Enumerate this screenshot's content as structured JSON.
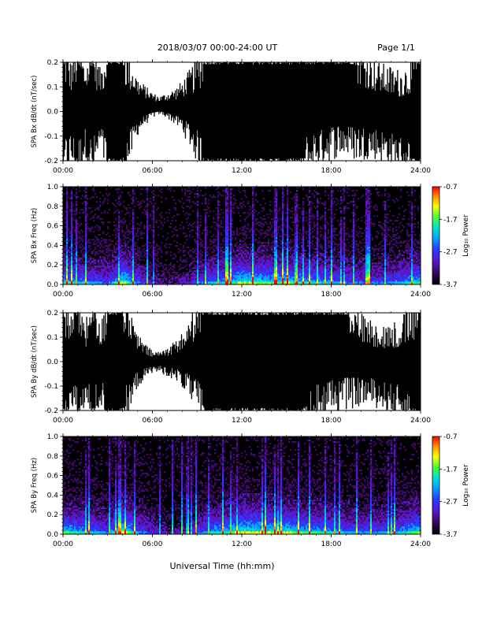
{
  "header": {
    "date_range": "2018/03/07  00:00-24:00 UT",
    "page": "Page 1/1"
  },
  "colors": {
    "axis": "#000000",
    "background": "#ffffff",
    "colormap": [
      "#000000",
      "#3a0a5c",
      "#5a16c8",
      "#2a3cff",
      "#00a8ff",
      "#00e0d0",
      "#40ff40",
      "#ffff00",
      "#ff9000",
      "#ff0000"
    ]
  },
  "chart_data": [
    {
      "type": "area",
      "ylabel": "SPA Bx dB/dt (nT/sec)",
      "ylim": [
        -0.2,
        0.2
      ],
      "ytick_labels": [
        "0.2",
        "0.1",
        "0.0",
        "-0.1",
        "-0.2"
      ],
      "xlim": [
        "00:00",
        "24:00"
      ],
      "xtick_labels": [
        "00:00",
        "06:00",
        "12:00",
        "18:00",
        "24:00"
      ],
      "envelope": {
        "x_hours": [
          0,
          0.5,
          1,
          1.5,
          2,
          2.5,
          3,
          3.5,
          4,
          4.5,
          5,
          5.5,
          6,
          6.5,
          7,
          7.5,
          8,
          8.5,
          9,
          9.5,
          10,
          10.5,
          11,
          11.5,
          12,
          12.5,
          13,
          13.5,
          14,
          14.5,
          15,
          15.5,
          16,
          16.5,
          17,
          17.5,
          18,
          18.5,
          19,
          19.5,
          20,
          20.5,
          21,
          21.5,
          22,
          22.5,
          23,
          23.5,
          24
        ],
        "upper": [
          0.2,
          0.14,
          0.2,
          0.13,
          0.2,
          0.12,
          0.2,
          0.2,
          0.2,
          0.15,
          0.1,
          0.08,
          0.06,
          0.05,
          0.06,
          0.07,
          0.09,
          0.12,
          0.15,
          0.2,
          0.2,
          0.2,
          0.2,
          0.2,
          0.2,
          0.2,
          0.2,
          0.2,
          0.2,
          0.2,
          0.2,
          0.2,
          0.2,
          0.2,
          0.2,
          0.2,
          0.2,
          0.2,
          0.2,
          0.2,
          0.18,
          0.16,
          0.14,
          0.13,
          0.12,
          0.11,
          0.12,
          0.15,
          0.2
        ],
        "lower": [
          -0.2,
          -0.15,
          -0.2,
          -0.12,
          -0.2,
          -0.1,
          -0.2,
          -0.2,
          -0.2,
          -0.14,
          -0.06,
          -0.03,
          -0.01,
          0.0,
          -0.01,
          -0.03,
          -0.05,
          -0.09,
          -0.14,
          -0.2,
          -0.2,
          -0.2,
          -0.2,
          -0.2,
          -0.2,
          -0.2,
          -0.2,
          -0.2,
          -0.2,
          -0.2,
          -0.2,
          -0.2,
          -0.2,
          -0.18,
          -0.15,
          -0.13,
          -0.12,
          -0.11,
          -0.11,
          -0.12,
          -0.13,
          -0.12,
          -0.13,
          -0.14,
          -0.15,
          -0.16,
          -0.18,
          -0.2,
          -0.2
        ]
      }
    },
    {
      "type": "heatmap",
      "ylabel": "SPA Bx Freq (Hz)",
      "ylim": [
        0.0,
        1.0
      ],
      "ytick_labels": [
        "1.0",
        "0.8",
        "0.6",
        "0.4",
        "0.2",
        "0.0"
      ],
      "xlim": [
        "00:00",
        "24:00"
      ],
      "xtick_labels": [
        "00:00",
        "06:00",
        "12:00",
        "18:00",
        "24:00"
      ],
      "colorbar": {
        "label": "Log₁₀ Power",
        "range": [
          -3.7,
          -0.7
        ],
        "tick_labels": [
          "-0.7",
          "-1.7",
          "-2.7",
          "-3.7"
        ]
      },
      "activity": {
        "x_hours": [
          0,
          1,
          2,
          3,
          4,
          5,
          6,
          7,
          8,
          9,
          10,
          11,
          12,
          13,
          14,
          15,
          16,
          17,
          18,
          19,
          20,
          21,
          22,
          23,
          24
        ],
        "level": [
          0.6,
          0.5,
          0.45,
          0.3,
          0.8,
          0.4,
          0.2,
          0.1,
          0.15,
          0.3,
          0.5,
          0.55,
          0.75,
          0.7,
          0.65,
          0.7,
          0.6,
          0.55,
          0.5,
          0.4,
          0.35,
          0.35,
          0.4,
          0.5,
          0.7
        ]
      }
    },
    {
      "type": "area",
      "ylabel": "SPA By dB/dt (nT/sec)",
      "ylim": [
        -0.2,
        0.2
      ],
      "ytick_labels": [
        "0.2",
        "0.1",
        "0.0",
        "-0.1",
        "-0.2"
      ],
      "xlim": [
        "00:00",
        "24:00"
      ],
      "xtick_labels": [
        "00:00",
        "06:00",
        "12:00",
        "18:00",
        "24:00"
      ],
      "envelope": {
        "x_hours": [
          0,
          0.5,
          1,
          1.5,
          2,
          2.5,
          3,
          3.5,
          4,
          4.5,
          5,
          5.5,
          6,
          6.5,
          7,
          7.5,
          8,
          8.5,
          9,
          9.5,
          10,
          10.5,
          11,
          11.5,
          12,
          12.5,
          13,
          13.5,
          14,
          14.5,
          15,
          15.5,
          16,
          16.5,
          17,
          17.5,
          18,
          18.5,
          19,
          19.5,
          20,
          20.5,
          21,
          21.5,
          22,
          22.5,
          23,
          23.5,
          24
        ],
        "upper": [
          0.2,
          0.15,
          0.2,
          0.1,
          0.2,
          0.09,
          0.2,
          0.2,
          0.2,
          0.14,
          0.08,
          0.05,
          0.03,
          0.03,
          0.04,
          0.06,
          0.08,
          0.12,
          0.17,
          0.2,
          0.2,
          0.2,
          0.2,
          0.2,
          0.2,
          0.2,
          0.2,
          0.2,
          0.2,
          0.2,
          0.2,
          0.2,
          0.2,
          0.2,
          0.2,
          0.2,
          0.2,
          0.2,
          0.2,
          0.17,
          0.14,
          0.12,
          0.11,
          0.1,
          0.1,
          0.11,
          0.13,
          0.16,
          0.2
        ],
        "lower": [
          -0.2,
          -0.14,
          -0.2,
          -0.13,
          -0.2,
          -0.12,
          -0.2,
          -0.2,
          -0.2,
          -0.15,
          -0.07,
          -0.05,
          -0.03,
          -0.03,
          -0.04,
          -0.05,
          -0.07,
          -0.1,
          -0.14,
          -0.2,
          -0.2,
          -0.2,
          -0.2,
          -0.2,
          -0.2,
          -0.2,
          -0.2,
          -0.2,
          -0.2,
          -0.2,
          -0.2,
          -0.2,
          -0.2,
          -0.19,
          -0.17,
          -0.15,
          -0.14,
          -0.13,
          -0.12,
          -0.12,
          -0.12,
          -0.12,
          -0.13,
          -0.14,
          -0.15,
          -0.16,
          -0.18,
          -0.2,
          -0.2
        ]
      }
    },
    {
      "type": "heatmap",
      "ylabel": "SPA By Freq (Hz)",
      "ylim": [
        0.0,
        1.0
      ],
      "ytick_labels": [
        "1.0",
        "0.8",
        "0.6",
        "0.4",
        "0.2",
        "0.0"
      ],
      "xlim": [
        "00:00",
        "24:00"
      ],
      "xtick_labels": [
        "00:00",
        "06:00",
        "12:00",
        "18:00",
        "24:00"
      ],
      "xlabel": "Universal Time (hh:mm)",
      "colorbar": {
        "label": "Log₁₀ Power",
        "range": [
          -3.7,
          -0.7
        ],
        "tick_labels": [
          "-0.7",
          "-1.7",
          "-2.7",
          "-3.7"
        ]
      },
      "activity": {
        "x_hours": [
          0,
          1,
          2,
          3,
          4,
          5,
          6,
          7,
          8,
          9,
          10,
          11,
          12,
          13,
          14,
          15,
          16,
          17,
          18,
          19,
          20,
          21,
          22,
          23,
          24
        ],
        "level": [
          0.65,
          0.55,
          0.5,
          0.35,
          0.85,
          0.45,
          0.25,
          0.12,
          0.18,
          0.35,
          0.55,
          0.6,
          0.8,
          0.75,
          0.7,
          0.75,
          0.65,
          0.6,
          0.55,
          0.45,
          0.4,
          0.4,
          0.45,
          0.55,
          0.75
        ]
      }
    }
  ]
}
